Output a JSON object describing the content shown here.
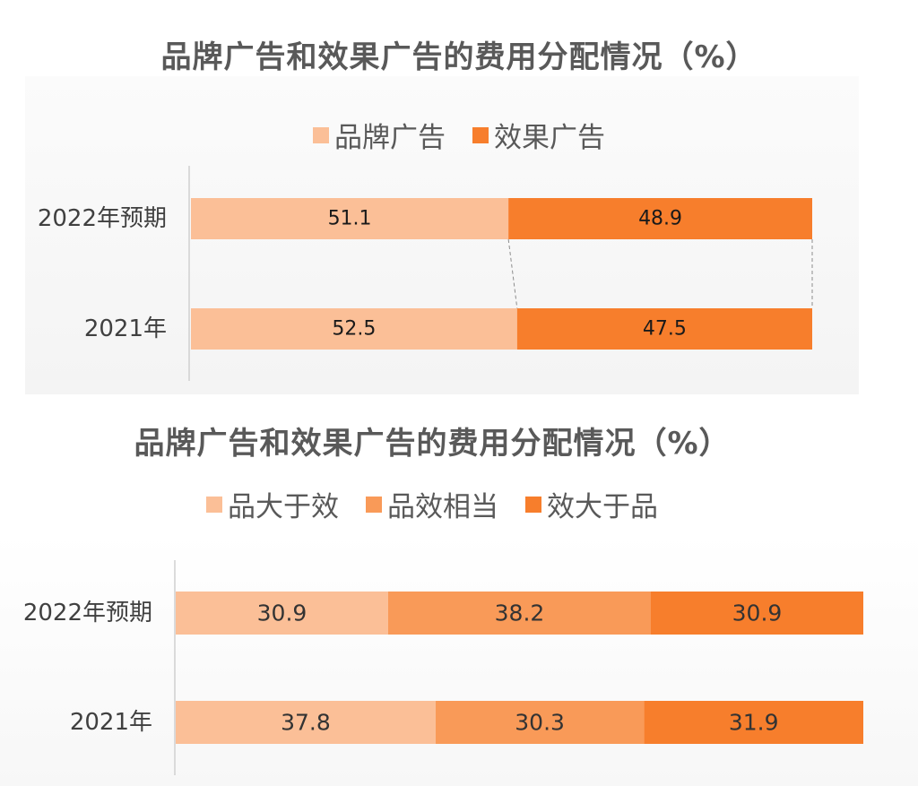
{
  "colors": {
    "light": "#fbbf97",
    "mid": "#f99a58",
    "dark": "#f77e2c"
  },
  "chart_data": [
    {
      "type": "bar",
      "orientation": "horizontal-stacked",
      "title": "品牌广告和效果广告的费用分配情况（%）",
      "categories": [
        "2022年预期",
        "2021年"
      ],
      "series": [
        {
          "name": "品牌广告",
          "values": [
            51.1,
            52.5
          ],
          "color": "#fbbf97"
        },
        {
          "name": "效果广告",
          "values": [
            48.9,
            47.5
          ],
          "color": "#f77e2c"
        }
      ],
      "xlim": [
        0,
        100
      ],
      "grid": false,
      "legend": "top"
    },
    {
      "type": "bar",
      "orientation": "horizontal-stacked",
      "title": "品牌广告和效果广告的费用分配情况（%）",
      "categories": [
        "2022年预期",
        "2021年"
      ],
      "series": [
        {
          "name": "品大于效",
          "values": [
            30.9,
            37.8
          ],
          "color": "#fbbf97"
        },
        {
          "name": "品效相当",
          "values": [
            38.2,
            30.3
          ],
          "color": "#f99a58"
        },
        {
          "name": "效大于品",
          "values": [
            30.9,
            31.9
          ],
          "color": "#f77e2c"
        }
      ],
      "xlim": [
        0,
        100
      ],
      "grid": false,
      "legend": "top"
    }
  ]
}
